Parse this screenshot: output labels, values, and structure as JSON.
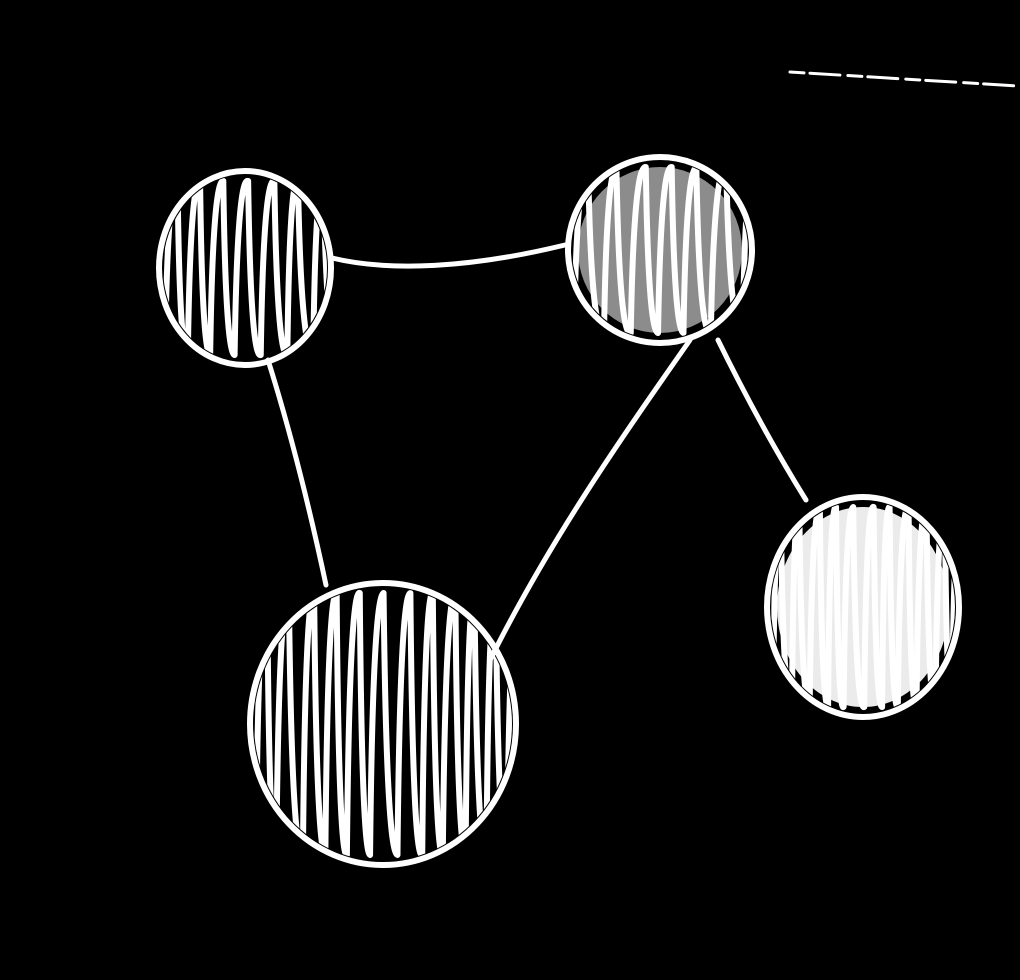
{
  "diagram": {
    "type": "network-graph-sketch",
    "style": "hand-drawn white chalk on black",
    "colors": {
      "background": "#000000",
      "ink": "#ffffff"
    },
    "nodes": [
      {
        "id": "node-top-left",
        "fill": "scribble-hatched"
      },
      {
        "id": "node-top-right",
        "fill": "scribble-hatched"
      },
      {
        "id": "node-bottom-center",
        "fill": "scribble-hatched"
      },
      {
        "id": "node-right",
        "fill": "scribble-hatched"
      }
    ],
    "edges": [
      {
        "from": "node-top-left",
        "to": "node-top-right"
      },
      {
        "from": "node-top-left",
        "to": "node-bottom-center"
      },
      {
        "from": "node-top-right",
        "to": "node-bottom-center"
      },
      {
        "from": "node-top-right",
        "to": "node-right"
      }
    ]
  }
}
